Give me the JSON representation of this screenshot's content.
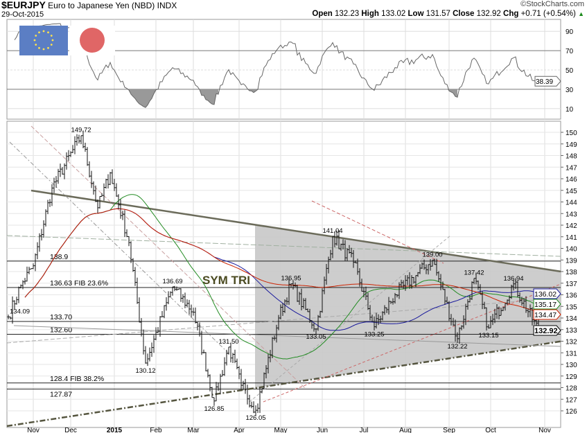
{
  "header": {
    "symbol": "$EURJPY",
    "name": "Euro to Japanese Yen (NBD)",
    "exchange": "INDX",
    "date": "29-Oct-2015",
    "watermark": "©StockCharts.com",
    "open_label": "Open",
    "open": "132.23",
    "high_label": "High",
    "high": "133.02",
    "low_label": "Low",
    "low": "131.57",
    "close_label": "Close",
    "close": "132.92",
    "chg_label": "Chg",
    "chg": "+0.71 (+0.54%)",
    "up_arrow": "▲"
  },
  "colors": {
    "ma_short": "#228B22",
    "ma_mid": "#1a1a9c",
    "ma_long": "#cc2200",
    "shade": "#c8c8c8",
    "trend": "#6b6b5a"
  },
  "chart_data": {
    "type": "ohlc",
    "title": "$EURJPY Euro to Japanese Yen (NBD)",
    "annotation": "SYM TRI",
    "x_ticks": [
      {
        "label": "Nov",
        "day": 12
      },
      {
        "label": "Dec",
        "day": 30
      },
      {
        "label": "2015",
        "day": 51
      },
      {
        "label": "Feb",
        "day": 71
      },
      {
        "label": "Mar",
        "day": 89
      },
      {
        "label": "Apr",
        "day": 111
      },
      {
        "label": "May",
        "day": 131
      },
      {
        "label": "Jun",
        "day": 151
      },
      {
        "label": "Jul",
        "day": 171
      },
      {
        "label": "Aug",
        "day": 191
      },
      {
        "label": "Sep",
        "day": 212
      },
      {
        "label": "Oct",
        "day": 232
      },
      {
        "label": "Nov",
        "day": 258
      }
    ],
    "y_range": [
      125.5,
      151
    ],
    "y_ticks": [
      126,
      127,
      128,
      129,
      130,
      131,
      132,
      133,
      134,
      135,
      136,
      137,
      138,
      139,
      140,
      141,
      142,
      143,
      144,
      145,
      146,
      147,
      148,
      149,
      150
    ],
    "price_anchors": [
      {
        "day": 0,
        "price": 134.09,
        "label": "134.09"
      },
      {
        "day": 6,
        "price": 136.8
      },
      {
        "day": 12,
        "price": 138.5
      },
      {
        "day": 21,
        "price": 145.2
      },
      {
        "day": 35,
        "price": 149.72,
        "label": "149.72"
      },
      {
        "day": 43,
        "price": 143.5
      },
      {
        "day": 49,
        "price": 146.5
      },
      {
        "day": 58,
        "price": 140.5
      },
      {
        "day": 66,
        "price": 130.12,
        "label": "130.12"
      },
      {
        "day": 79,
        "price": 136.69,
        "label": "136.69"
      },
      {
        "day": 89,
        "price": 134.5
      },
      {
        "day": 99,
        "price": 126.85,
        "label": "126.85"
      },
      {
        "day": 106,
        "price": 131.5,
        "label": "131.50"
      },
      {
        "day": 112,
        "price": 128.2
      },
      {
        "day": 119,
        "price": 126.05,
        "label": "126.05"
      },
      {
        "day": 130,
        "price": 134.0
      },
      {
        "day": 136,
        "price": 136.95,
        "label": "136.95"
      },
      {
        "day": 148,
        "price": 133.05,
        "label": "133.05"
      },
      {
        "day": 156,
        "price": 141.04,
        "label": "141.04"
      },
      {
        "day": 166,
        "price": 138.8
      },
      {
        "day": 176,
        "price": 133.25,
        "label": "133.25"
      },
      {
        "day": 186,
        "price": 136.0
      },
      {
        "day": 204,
        "price": 139.0,
        "label": "139.00"
      },
      {
        "day": 216,
        "price": 132.22,
        "label": "132.22"
      },
      {
        "day": 224,
        "price": 137.42,
        "label": "137.42"
      },
      {
        "day": 231,
        "price": 133.15,
        "label": "133.15"
      },
      {
        "day": 243,
        "price": 136.94,
        "label": "136.94"
      },
      {
        "day": 255,
        "price": 132.92
      }
    ],
    "levels": [
      {
        "price": 138.9,
        "label": "138.9"
      },
      {
        "price": 136.63,
        "label": "136.63  FIB 23.6%"
      },
      {
        "price": 133.7,
        "label": "133.70"
      },
      {
        "price": 132.6,
        "label": "132.60"
      },
      {
        "price": 128.4,
        "label": "128.4  FIB 38.2%"
      },
      {
        "price": 127.87,
        "label": "127.87"
      }
    ],
    "last_values": [
      {
        "value": "136.02",
        "color": "#1a1a9c"
      },
      {
        "value": "135.17",
        "color": "#228B22"
      },
      {
        "value": "134.47",
        "color": "#cc2200"
      },
      {
        "value": "132.92",
        "color": "#000000"
      }
    ],
    "moving_averages": [
      {
        "period": 50,
        "color": "#228B22"
      },
      {
        "period": 100,
        "color": "#1a1a9c"
      },
      {
        "period": 200,
        "color": "#cc2200"
      }
    ],
    "rsi": {
      "period": 14,
      "y_ticks": [
        10,
        30,
        50,
        70,
        90
      ],
      "last": "38.39"
    }
  }
}
